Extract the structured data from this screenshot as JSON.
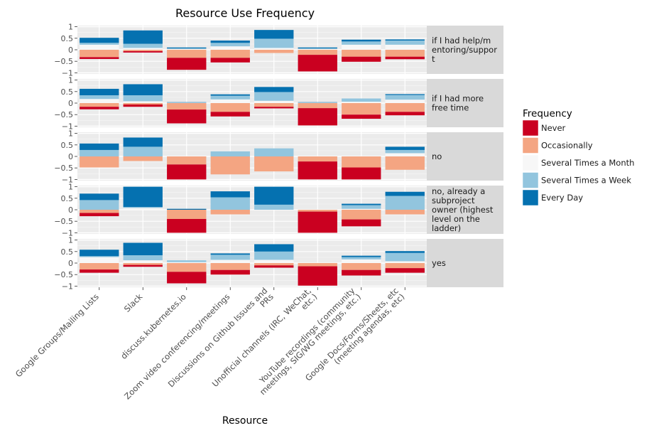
{
  "chart_data": {
    "type": "bar",
    "stacking": "diverging",
    "title": "Resource Use Frequency",
    "xlabel": "Resource",
    "ylabel": "",
    "ylim": [
      -1.05,
      1.05
    ],
    "yticks": [
      1,
      0.5,
      0,
      -0.5,
      -1
    ],
    "ytick_labels": [
      "1",
      "0.5",
      "0",
      "−0.5",
      "−1"
    ],
    "grid": true,
    "legend": {
      "title": "Frequency",
      "position": "right",
      "entries": [
        {
          "name": "Never",
          "color": "#ca0020"
        },
        {
          "name": "Occasionally",
          "color": "#f4a582"
        },
        {
          "name": "Several Times a Month",
          "color": "#f7f7f7"
        },
        {
          "name": "Several Times a Week",
          "color": "#92c5de"
        },
        {
          "name": "Every Day",
          "color": "#0571b0"
        }
      ]
    },
    "categories": [
      "Google Groups/Mailing Lists",
      "Slack",
      "discuss.kubernetes.io",
      "Zoom video conferencing/meetings",
      "Discussions on Github Issues and PRs",
      "Unofficial channels (IRC, WeChat, etc.)",
      "YouTube recordings (community meetings, SIG/WG meetings, etc.)",
      "Google Docs/Forms/Sheets, etc (meeting agendas, etc)"
    ],
    "category_labels": [
      [
        "Google Groups/Mailing Lists"
      ],
      [
        "Slack"
      ],
      [
        "discuss.kubernetes.io"
      ],
      [
        "Zoom video conferencing/meetings"
      ],
      [
        "Discussions on Github Issues and",
        "PRs"
      ],
      [
        "Unofficial channels (IRC, WeChat,",
        "etc.)"
      ],
      [
        "YouTube recordings (community",
        "meetings, SIG/WG meetings, etc.)"
      ],
      [
        "Google Docs/Forms/Sheets, etc",
        "(meeting agendas, etc)"
      ]
    ],
    "facets": [
      {
        "label": [
          "if I had help/m",
          "entoring/suppor",
          "t"
        ],
        "bars": [
          {
            "never": -0.08,
            "occasionally": -0.32,
            "month": 0.22,
            "week": 0.08,
            "every_day": 0.22
          },
          {
            "never": -0.06,
            "occasionally": -0.06,
            "month": 0.08,
            "week": 0.18,
            "every_day": 0.58
          },
          {
            "never": -0.52,
            "occasionally": -0.35,
            "month": 0.05,
            "week": 0.0,
            "every_day": 0.05
          },
          {
            "never": -0.2,
            "occasionally": -0.35,
            "month": 0.15,
            "week": 0.15,
            "every_day": 0.1
          },
          {
            "never": 0.0,
            "occasionally": -0.14,
            "month": 0.08,
            "week": 0.4,
            "every_day": 0.38
          },
          {
            "never": -0.72,
            "occasionally": -0.22,
            "month": 0.05,
            "week": 0.0,
            "every_day": 0.05
          },
          {
            "never": -0.22,
            "occasionally": -0.3,
            "month": 0.22,
            "week": 0.14,
            "every_day": 0.08
          },
          {
            "never": -0.11,
            "occasionally": -0.3,
            "month": 0.22,
            "week": 0.18,
            "every_day": 0.05
          }
        ]
      },
      {
        "label": [
          "if I had more",
          "free time"
        ],
        "bars": [
          {
            "never": -0.11,
            "occasionally": -0.16,
            "month": 0.18,
            "week": 0.16,
            "every_day": 0.28
          },
          {
            "never": -0.1,
            "occasionally": -0.06,
            "month": 0.08,
            "week": 0.26,
            "every_day": 0.48
          },
          {
            "never": -0.6,
            "occasionally": -0.28,
            "month": 0.02,
            "week": 0.0,
            "every_day": 0.02
          },
          {
            "never": -0.2,
            "occasionally": -0.38,
            "month": 0.16,
            "week": 0.16,
            "every_day": 0.06
          },
          {
            "never": -0.07,
            "occasionally": -0.16,
            "month": 0.1,
            "week": 0.38,
            "every_day": 0.22
          },
          {
            "never": -0.75,
            "occasionally": -0.22,
            "month": 0.02,
            "week": 0.0,
            "every_day": 0.02
          },
          {
            "never": -0.18,
            "occasionally": -0.5,
            "month": 0.06,
            "week": 0.14,
            "every_day": 0.0
          },
          {
            "never": -0.15,
            "occasionally": -0.38,
            "month": 0.15,
            "week": 0.2,
            "every_day": 0.04
          }
        ]
      },
      {
        "label": [
          "no"
        ],
        "bars": [
          {
            "never": 0.0,
            "occasionally": -0.48,
            "month": 0.0,
            "week": 0.28,
            "every_day": 0.28
          },
          {
            "never": 0.0,
            "occasionally": -0.2,
            "month": 0.0,
            "week": 0.42,
            "every_day": 0.4
          },
          {
            "never": -0.65,
            "occasionally": -0.35,
            "month": 0.0,
            "week": 0.0,
            "every_day": 0.0
          },
          {
            "never": 0.0,
            "occasionally": -0.78,
            "month": 0.0,
            "week": 0.22,
            "every_day": 0.0
          },
          {
            "never": 0.0,
            "occasionally": -0.65,
            "month": 0.0,
            "week": 0.35,
            "every_day": 0.0
          },
          {
            "never": -0.78,
            "occasionally": -0.22,
            "month": 0.0,
            "week": 0.0,
            "every_day": 0.0
          },
          {
            "never": -0.52,
            "occasionally": -0.48,
            "month": 0.0,
            "week": 0.0,
            "every_day": 0.0
          },
          {
            "never": 0.0,
            "occasionally": -0.58,
            "month": 0.14,
            "week": 0.14,
            "every_day": 0.14
          }
        ]
      },
      {
        "label": [
          "no, already a",
          "subproject",
          "owner (highest",
          "level on the",
          "ladder)"
        ],
        "bars": [
          {
            "never": -0.14,
            "occasionally": -0.14,
            "month": 0.0,
            "week": 0.42,
            "every_day": 0.28
          },
          {
            "never": 0.0,
            "occasionally": 0.0,
            "month": 0.08,
            "week": 0.04,
            "every_day": 0.88
          },
          {
            "never": -0.6,
            "occasionally": -0.4,
            "month": 0.0,
            "week": 0.0,
            "every_day": 0.04
          },
          {
            "never": 0.0,
            "occasionally": -0.2,
            "month": 0.0,
            "week": 0.54,
            "every_day": 0.26
          },
          {
            "never": 0.0,
            "occasionally": 0.0,
            "month": 0.0,
            "week": 0.22,
            "every_day": 0.78
          },
          {
            "never": -0.92,
            "occasionally": -0.08,
            "month": 0.0,
            "week": 0.0,
            "every_day": 0.0
          },
          {
            "never": -0.3,
            "occasionally": -0.42,
            "month": 0.04,
            "week": 0.16,
            "every_day": 0.06
          },
          {
            "never": 0.0,
            "occasionally": -0.2,
            "month": 0.0,
            "week": 0.6,
            "every_day": 0.18
          }
        ]
      },
      {
        "label": [
          "yes"
        ],
        "bars": [
          {
            "never": -0.14,
            "occasionally": -0.28,
            "month": 0.26,
            "week": 0.04,
            "every_day": 0.28
          },
          {
            "never": -0.08,
            "occasionally": -0.08,
            "month": 0.12,
            "week": 0.22,
            "every_day": 0.54
          },
          {
            "never": -0.5,
            "occasionally": -0.38,
            "month": 0.04,
            "week": 0.08,
            "every_day": 0.0
          },
          {
            "never": -0.2,
            "occasionally": -0.3,
            "month": 0.14,
            "week": 0.22,
            "every_day": 0.06
          },
          {
            "never": -0.1,
            "occasionally": -0.1,
            "month": 0.14,
            "week": 0.36,
            "every_day": 0.32
          },
          {
            "never": -0.84,
            "occasionally": -0.14,
            "month": 0.02,
            "week": 0.0,
            "every_day": 0.0
          },
          {
            "never": -0.24,
            "occasionally": -0.3,
            "month": 0.16,
            "week": 0.1,
            "every_day": 0.06
          },
          {
            "never": -0.2,
            "occasionally": -0.22,
            "month": 0.08,
            "week": 0.36,
            "every_day": 0.08
          }
        ]
      }
    ]
  }
}
